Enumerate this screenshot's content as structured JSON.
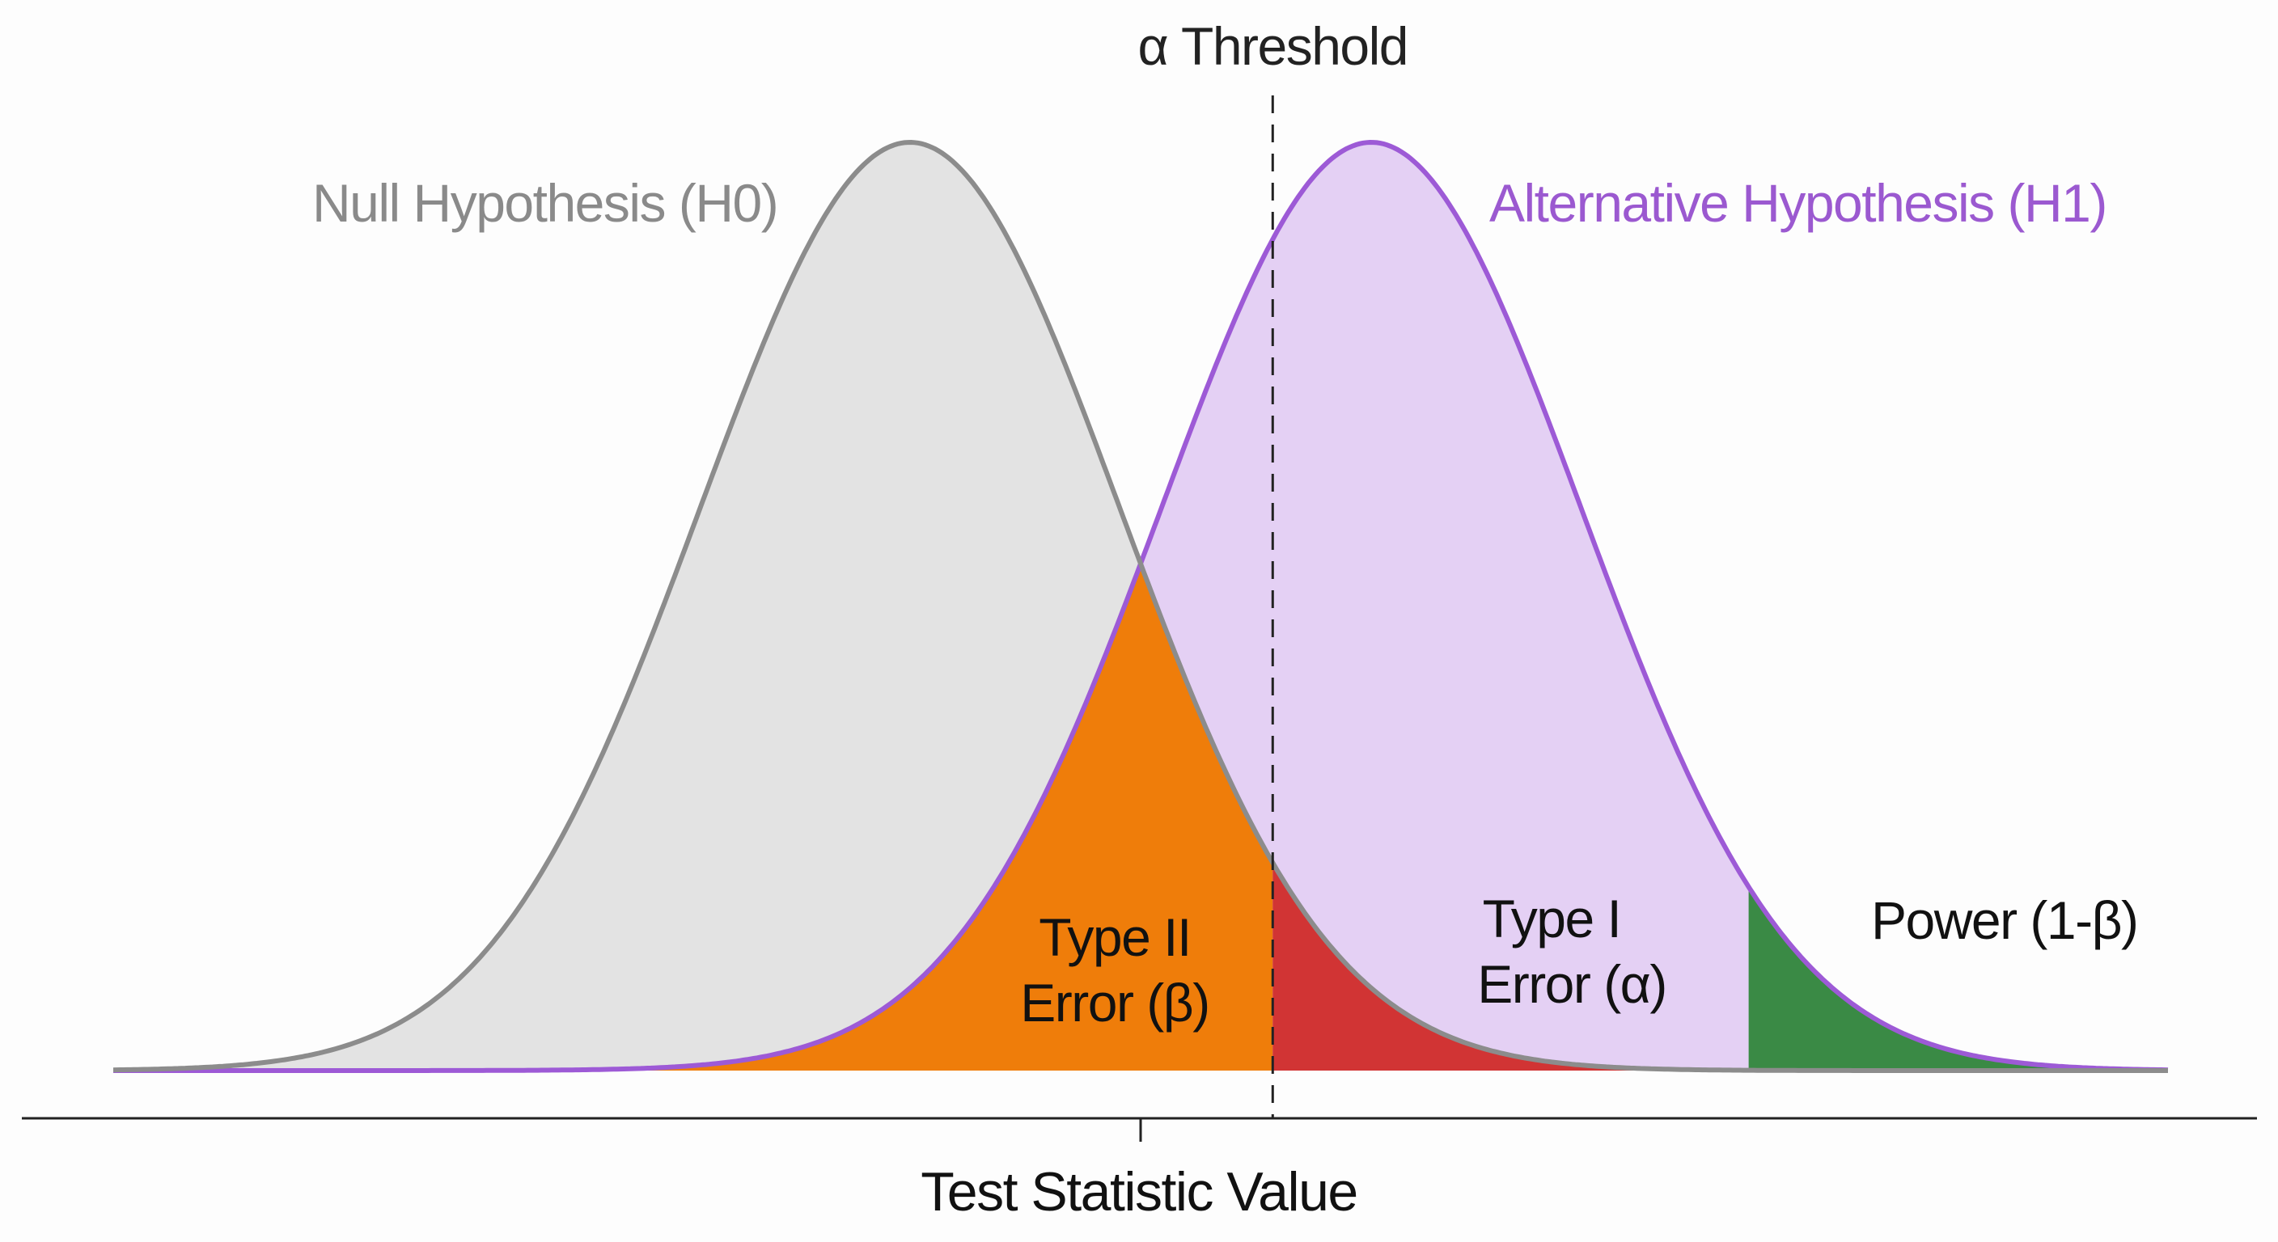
{
  "chart_data": {
    "type": "area",
    "title": "",
    "xlabel": "Test Statistic Value",
    "ylabel": "",
    "xlim": [
      -3.8,
      6.0
    ],
    "grid": false,
    "series": [
      {
        "name": "Null Hypothesis (H0)",
        "distribution": "normal",
        "mean": 0.0,
        "sd": 1.0,
        "color": "#8c8c8c",
        "fill": "#e3e3e3"
      },
      {
        "name": "Alternative Hypothesis (H1)",
        "distribution": "normal",
        "mean": 2.2,
        "sd": 1.0,
        "color": "#9d5ad6",
        "fill": "#e4d0f4"
      }
    ],
    "threshold": {
      "label": "α Threshold",
      "value": 1.73
    },
    "power_cutoff": 4.0,
    "x_tick": 1.1,
    "regions": [
      {
        "label_lines": [
          "Type II",
          "Error (β)"
        ],
        "color": "#ef7d0a"
      },
      {
        "label_lines": [
          "Type I",
          "Error (α)"
        ],
        "color": "#d13434"
      },
      {
        "label_lines": [
          "Power (1-β)"
        ],
        "color": "#3a8a45"
      }
    ]
  }
}
